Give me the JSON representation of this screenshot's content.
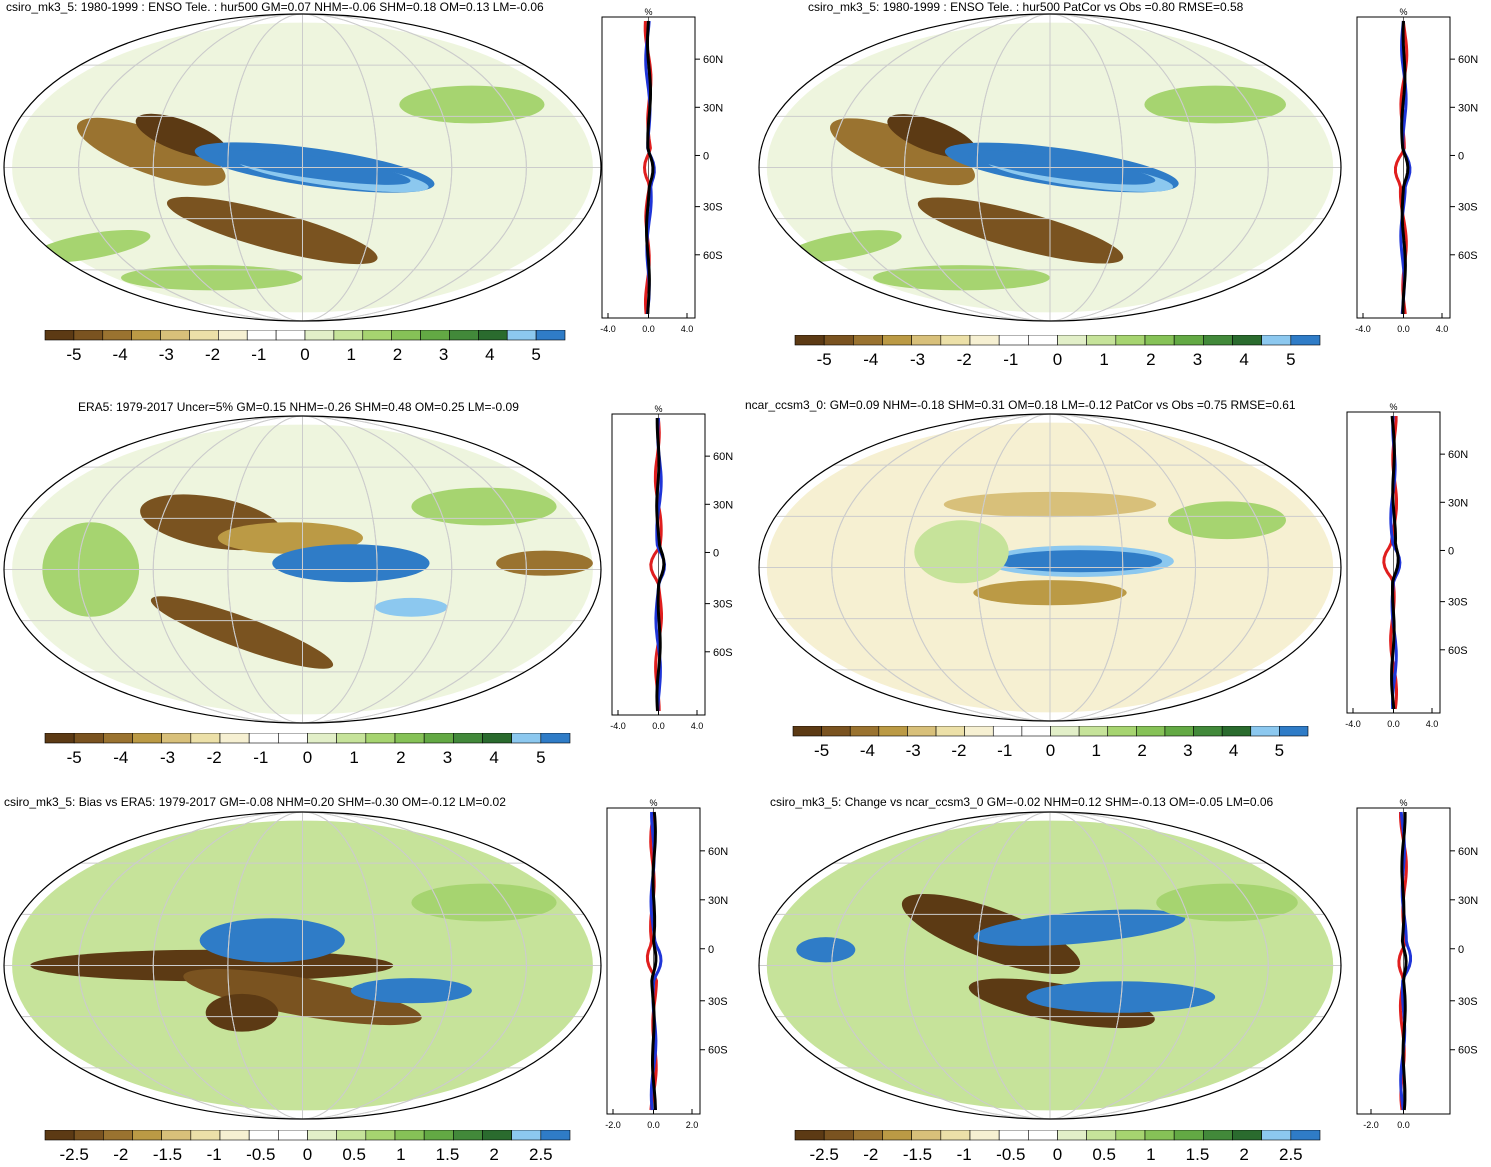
{
  "panels": [
    {
      "title": "csiro_mk3_5: 1980-1999 : ENSO Tele. : hur500 GM=0.07 NHM=-0.06 SHM=0.18 OM=0.13 LM=-0.06",
      "profile": {
        "unit": "%",
        "lat_ticks": [
          "60N",
          "30N",
          "0",
          "30S",
          "60S"
        ],
        "x_ticks": [
          "-4.0",
          "0.0",
          "4.0"
        ]
      },
      "colorbar": {
        "labels": [
          "-5",
          "-4",
          "-3",
          "-2",
          "-1",
          "0",
          "1",
          "2",
          "3",
          "4",
          "5"
        ]
      }
    },
    {
      "title": "csiro_mk3_5: 1980-1999 : ENSO Tele. : hur500 PatCor vs Obs =0.80 RMSE=0.58",
      "profile": {
        "unit": "%",
        "lat_ticks": [
          "60N",
          "30N",
          "0",
          "30S",
          "60S"
        ],
        "x_ticks": [
          "-4.0",
          "0.0",
          "4.0"
        ]
      },
      "colorbar": {
        "labels": [
          "-5",
          "-4",
          "-3",
          "-2",
          "-1",
          "0",
          "1",
          "2",
          "3",
          "4",
          "5"
        ]
      }
    },
    {
      "title": "ERA5: 1979-2017 Uncer=5% GM=0.15 NHM=-0.26 SHM=0.48 OM=0.25 LM=-0.09",
      "profile": {
        "unit": "%",
        "lat_ticks": [
          "60N",
          "30N",
          "0",
          "30S",
          "60S"
        ],
        "x_ticks": [
          "-4.0",
          "0.0",
          "4.0"
        ]
      },
      "colorbar": {
        "labels": [
          "-5",
          "-4",
          "-3",
          "-2",
          "-1",
          "0",
          "1",
          "2",
          "3",
          "4",
          "5"
        ]
      }
    },
    {
      "title": "ncar_ccsm3_0: GM=0.09 NHM=-0.18 SHM=0.31 OM=0.18 LM=-0.12 PatCor vs Obs =0.75 RMSE=0.61",
      "profile": {
        "unit": "%",
        "lat_ticks": [
          "60N",
          "30N",
          "0",
          "30S",
          "60S"
        ],
        "x_ticks": [
          "-4.0",
          "0.0",
          "4.0"
        ]
      },
      "colorbar": {
        "labels": [
          "-5",
          "-4",
          "-3",
          "-2",
          "-1",
          "0",
          "1",
          "2",
          "3",
          "4",
          "5"
        ]
      }
    },
    {
      "title": "csiro_mk3_5: Bias vs ERA5: 1979-2017 GM=-0.08 NHM=0.20 SHM=-0.30 OM=-0.12 LM=0.02",
      "profile": {
        "unit": "%",
        "lat_ticks": [
          "60N",
          "30N",
          "0",
          "30S",
          "60S"
        ],
        "x_ticks": [
          "-2.0",
          "0.0",
          "2.0"
        ]
      },
      "colorbar": {
        "labels": [
          "-2.5",
          "-2",
          "-1.5",
          "-1",
          "-0.5",
          "0",
          "0.5",
          "1",
          "1.5",
          "2",
          "2.5"
        ]
      }
    },
    {
      "title": "csiro_mk3_5: Change vs ncar_ccsm3_0 GM=-0.02 NHM=0.12 SHM=-0.13 OM=-0.05 LM=0.06",
      "profile": {
        "unit": "%",
        "lat_ticks": [
          "60N",
          "30N",
          "0",
          "30S",
          "60S"
        ],
        "x_ticks": [
          "-2.0",
          "0.0"
        ]
      },
      "colorbar": {
        "labels": [
          "-2.5",
          "-2",
          "-1.5",
          "-1",
          "-0.5",
          "0",
          "0.5",
          "1",
          "1.5",
          "2",
          "2.5"
        ]
      }
    }
  ],
  "palette": [
    "#5c3a14",
    "#7a5320",
    "#9a7330",
    "#bb9a45",
    "#d8c07a",
    "#ece0a8",
    "#f6f0d2",
    "#ffffff",
    "#ffffff",
    "#e2efc8",
    "#c6e39a",
    "#a6d470",
    "#86c257",
    "#63a944",
    "#42893a",
    "#2a6b2e",
    "#8cc8ef",
    "#2f7cc7"
  ],
  "profile_colors": {
    "model": "#e01e1e",
    "obs": "#1f35d8",
    "mean": "#000000"
  }
}
